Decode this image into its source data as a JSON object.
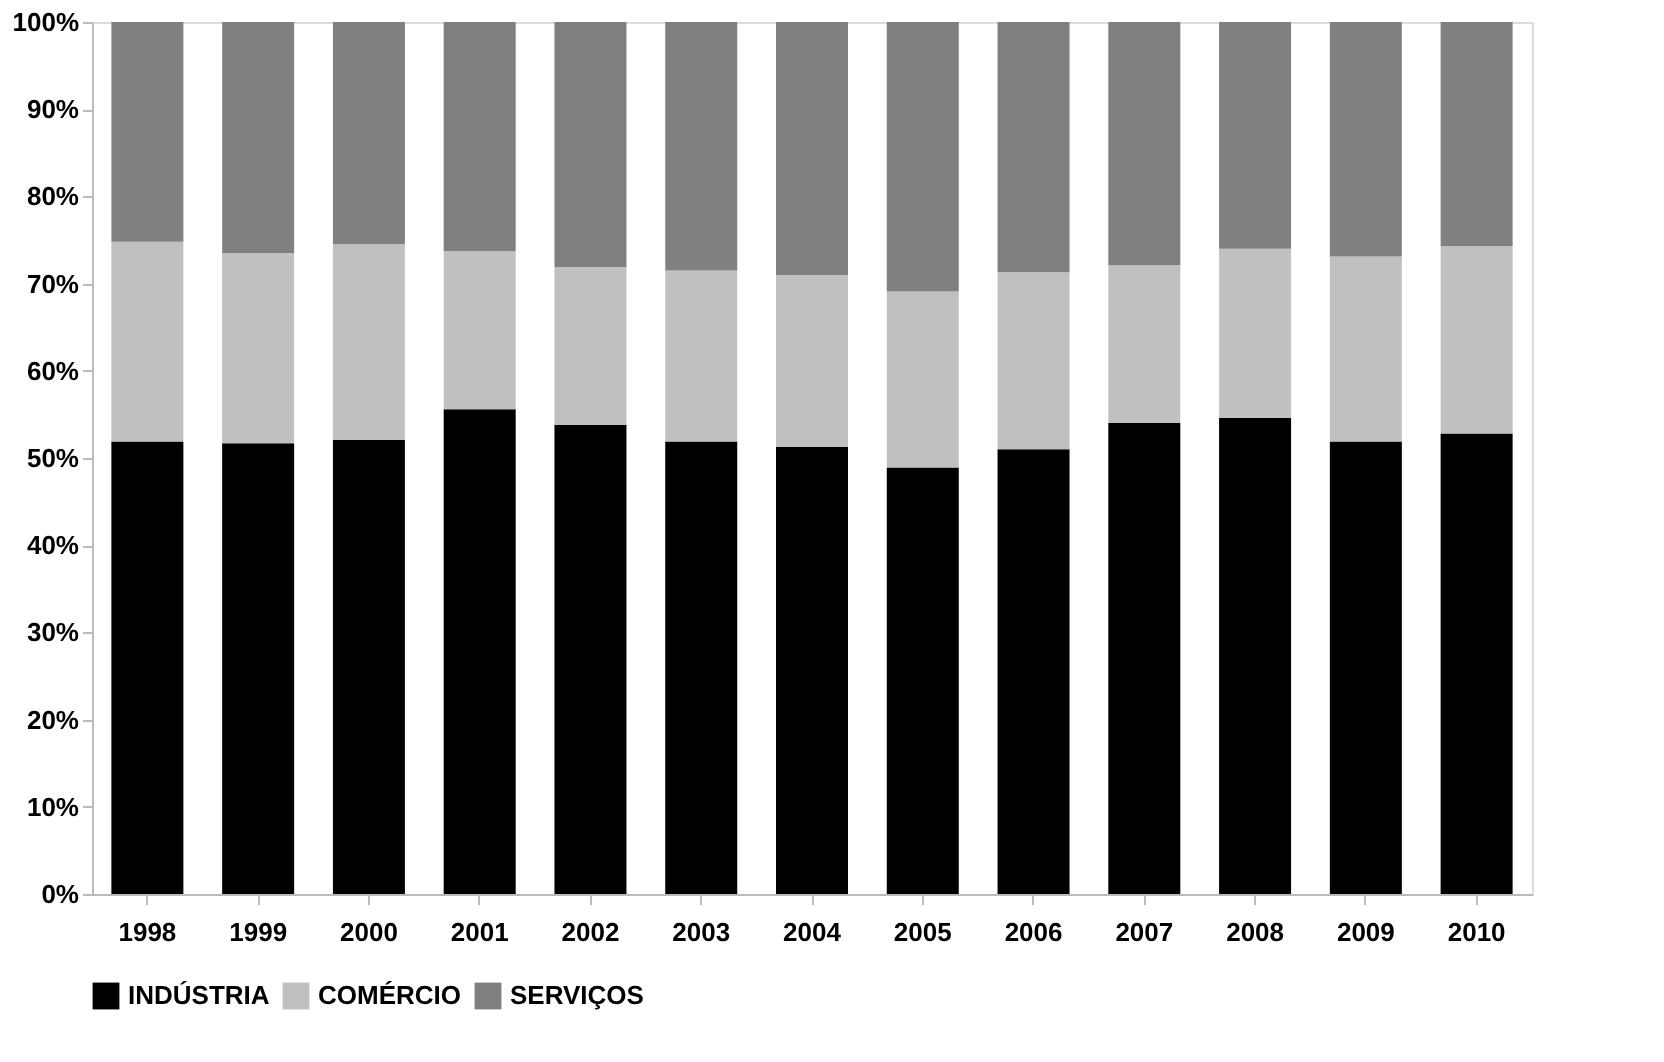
{
  "chart_data": {
    "type": "bar",
    "stacked": true,
    "categories": [
      "1998",
      "1999",
      "2000",
      "2001",
      "2002",
      "2003",
      "2004",
      "2005",
      "2006",
      "2007",
      "2008",
      "2009",
      "2010"
    ],
    "series": [
      {
        "name": "INDÚSTRIA",
        "color": "#000000",
        "values": [
          51.9,
          51.7,
          52.1,
          55.6,
          53.8,
          51.9,
          51.3,
          48.9,
          51.0,
          54.0,
          54.6,
          51.9,
          52.8
        ]
      },
      {
        "name": "COMÉRCIO",
        "color": "#c0c0c0",
        "values": [
          22.9,
          21.8,
          22.4,
          18.1,
          18.1,
          19.6,
          19.7,
          20.2,
          20.3,
          18.1,
          19.4,
          21.2,
          21.5
        ]
      },
      {
        "name": "SERVIÇOS",
        "color": "#808080",
        "values": [
          25.2,
          26.5,
          25.5,
          26.3,
          28.1,
          28.5,
          29.0,
          30.9,
          28.7,
          27.9,
          26.0,
          26.9,
          25.7
        ]
      }
    ],
    "ylim": [
      0,
      100
    ],
    "yticks": [
      {
        "value": 0,
        "label": "0%"
      },
      {
        "value": 10,
        "label": "10%"
      },
      {
        "value": 20,
        "label": "20%"
      },
      {
        "value": 30,
        "label": "30%"
      },
      {
        "value": 40,
        "label": "40%"
      },
      {
        "value": 50,
        "label": "50%"
      },
      {
        "value": 60,
        "label": "60%"
      },
      {
        "value": 70,
        "label": "70%"
      },
      {
        "value": 80,
        "label": "80%"
      },
      {
        "value": 90,
        "label": "90%"
      },
      {
        "value": 100,
        "label": "100%"
      }
    ],
    "grid": false,
    "legend": "bottom"
  }
}
